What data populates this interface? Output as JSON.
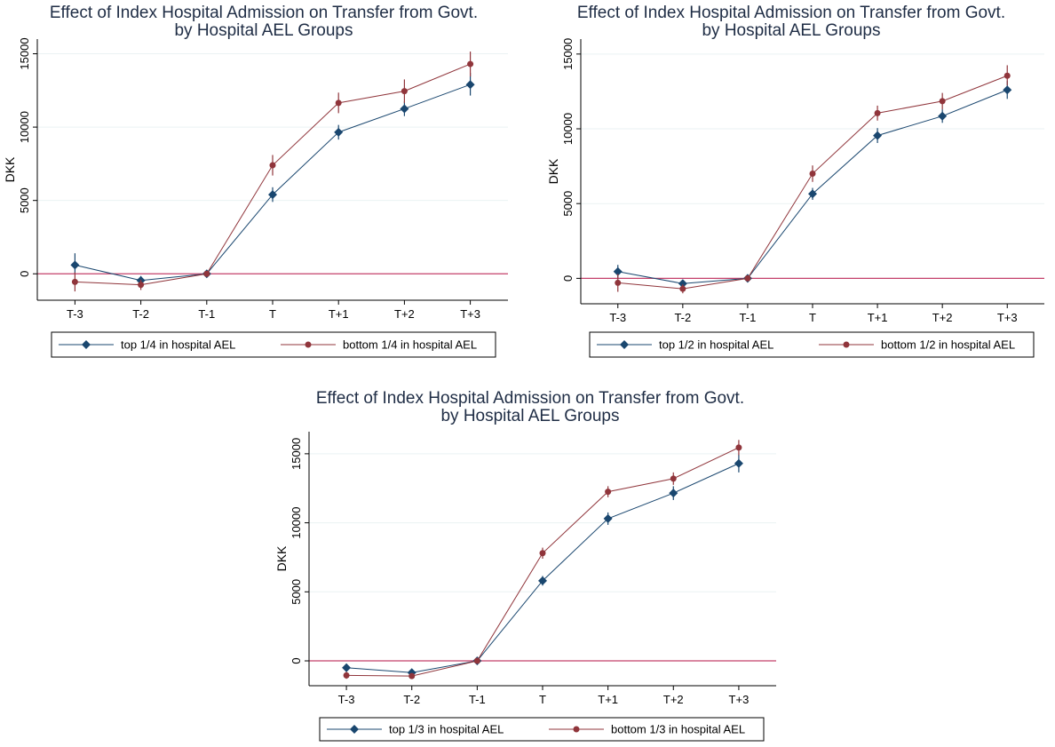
{
  "colors": {
    "top": "#1a476f",
    "bottom": "#90353b",
    "zero_line": "#c4406a",
    "grid": "#eaf2f3",
    "title": "#1f2d45"
  },
  "chart_data": [
    {
      "type": "line",
      "title": "Effect of Index Hospital Admission on Transfer from Govt.",
      "subtitle": "by Hospital AEL Groups",
      "xlabel": "",
      "ylabel": "DKK",
      "categories": [
        "T-3",
        "T-2",
        "T-1",
        "T",
        "T+1",
        "T+2",
        "T+3"
      ],
      "yticks": [
        "0",
        "5000",
        "10000",
        "15000"
      ],
      "ylim": [
        -1800,
        16000
      ],
      "zero_line": true,
      "grid": true,
      "legend_position": "bottom",
      "series": [
        {
          "name": "top 1/4 in hospital AEL",
          "marker": "diamond",
          "values": [
            600,
            -450,
            0,
            5400,
            9650,
            11250,
            12900
          ],
          "ci_low": [
            0,
            -750,
            -200,
            4900,
            9150,
            10750,
            12150
          ],
          "ci_high": [
            1400,
            -150,
            200,
            5900,
            10150,
            11750,
            13700
          ]
        },
        {
          "name": "bottom 1/4 in hospital AEL",
          "marker": "circle",
          "values": [
            -550,
            -750,
            0,
            7400,
            11650,
            12450,
            14300
          ],
          "ci_low": [
            -1200,
            -1100,
            -200,
            6700,
            10950,
            11650,
            13450
          ],
          "ci_high": [
            100,
            -400,
            200,
            8100,
            12350,
            13250,
            15150
          ]
        }
      ]
    },
    {
      "type": "line",
      "title": "Effect of Index Hospital Admission on Transfer from Govt.",
      "subtitle": "by Hospital AEL Groups",
      "xlabel": "",
      "ylabel": "DKK",
      "categories": [
        "T-3",
        "T-2",
        "T-1",
        "T",
        "T+1",
        "T+2",
        "T+3"
      ],
      "yticks": [
        "0",
        "5000",
        "10000",
        "15000"
      ],
      "ylim": [
        -1700,
        16000
      ],
      "zero_line": true,
      "grid": true,
      "legend_position": "bottom",
      "series": [
        {
          "name": "top 1/2 in hospital AEL",
          "marker": "diamond",
          "values": [
            450,
            -350,
            0,
            5650,
            9550,
            10850,
            12600
          ],
          "ci_low": [
            0,
            -600,
            -150,
            5250,
            9050,
            10400,
            12000
          ],
          "ci_high": [
            900,
            -100,
            150,
            6050,
            10050,
            11300,
            13200
          ]
        },
        {
          "name": "bottom 1/2 in hospital AEL",
          "marker": "circle",
          "values": [
            -300,
            -700,
            0,
            7000,
            11050,
            11850,
            13550
          ],
          "ci_low": [
            -900,
            -1000,
            -150,
            6450,
            10550,
            11300,
            12900
          ],
          "ci_high": [
            300,
            -400,
            150,
            7550,
            11550,
            12400,
            14250
          ]
        }
      ]
    },
    {
      "type": "line",
      "title": "Effect of Index Hospital Admission on Transfer from Govt.",
      "subtitle": "by Hospital AEL Groups",
      "xlabel": "",
      "ylabel": "DKK",
      "categories": [
        "T-3",
        "T-2",
        "T-1",
        "T",
        "T+1",
        "T+2",
        "T+3"
      ],
      "yticks": [
        "0",
        "5000",
        "10000",
        "15000"
      ],
      "ylim": [
        -1800,
        16600
      ],
      "zero_line": true,
      "grid": true,
      "legend_position": "bottom",
      "series": [
        {
          "name": "top 1/3 in hospital AEL",
          "marker": "diamond",
          "values": [
            -500,
            -850,
            0,
            5800,
            10300,
            12150,
            14300
          ],
          "ci_low": [
            -800,
            -1050,
            -150,
            5450,
            9850,
            11650,
            13650
          ],
          "ci_high": [
            -200,
            -650,
            150,
            6150,
            10750,
            12650,
            14950
          ]
        },
        {
          "name": "bottom 1/3 in hospital AEL",
          "marker": "circle",
          "values": [
            -1050,
            -1100,
            0,
            7800,
            12250,
            13200,
            15450
          ],
          "ci_low": [
            -1300,
            -1300,
            -150,
            7400,
            11850,
            12750,
            14900
          ],
          "ci_high": [
            -800,
            -900,
            150,
            8200,
            12650,
            13650,
            16000
          ]
        }
      ]
    }
  ]
}
